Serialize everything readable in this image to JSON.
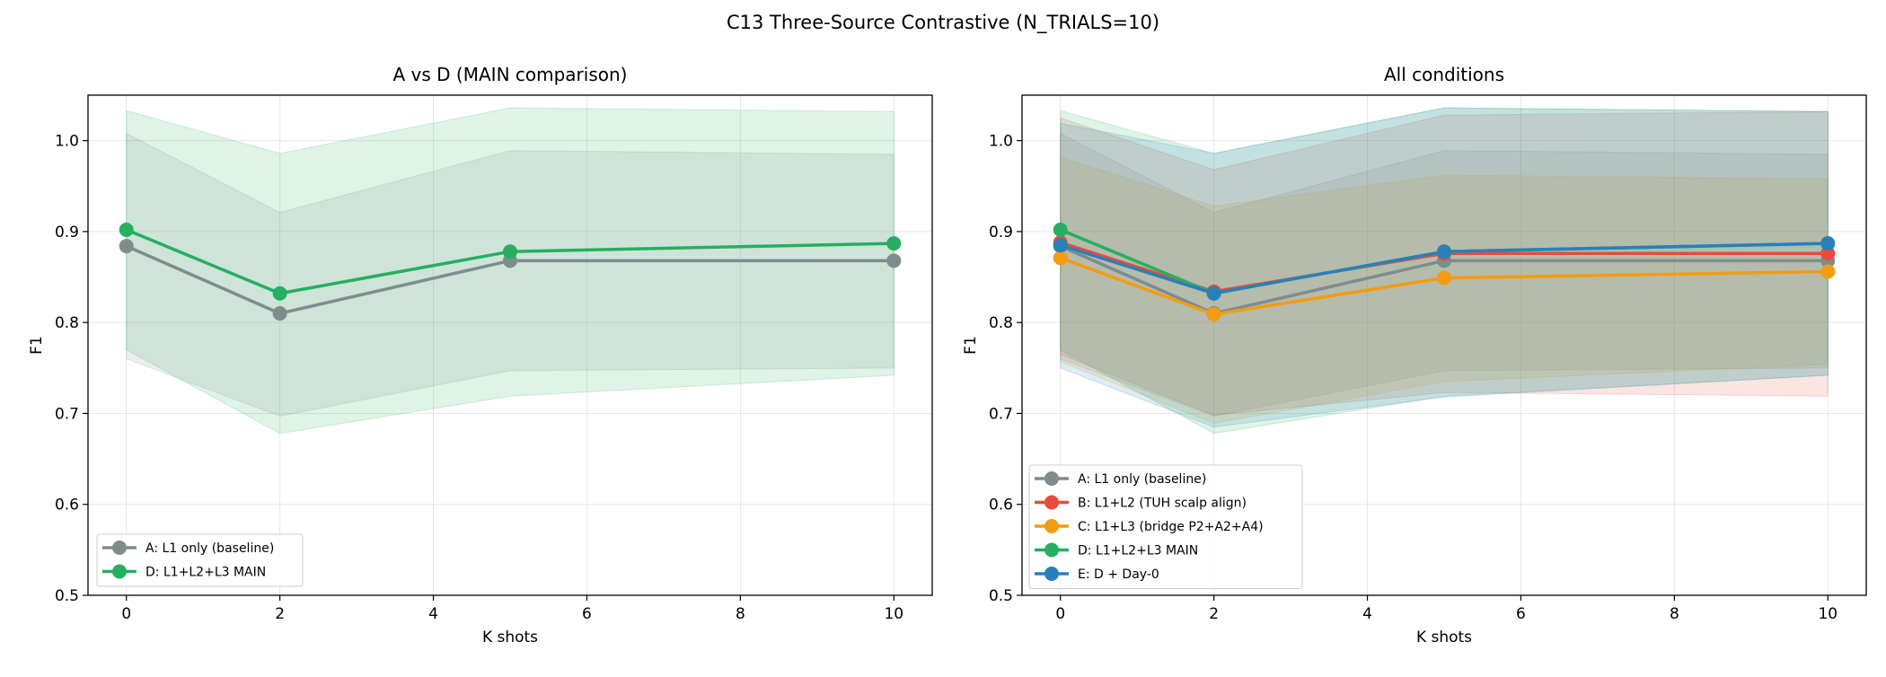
{
  "figure_title": "C13 Three-Source Contrastive (N_TRIALS=10)",
  "chart_data": [
    {
      "type": "line",
      "title": "A vs D (MAIN comparison)",
      "xlabel": "K shots",
      "ylabel": "F1",
      "xlim": [
        -0.5,
        10.5
      ],
      "ylim": [
        0.5,
        1.05
      ],
      "xticks": [
        0,
        2,
        4,
        6,
        8,
        10
      ],
      "yticks": [
        "0.5",
        "0.6",
        "0.7",
        "0.8",
        "0.9",
        "1.0"
      ],
      "grid": true,
      "legend_position": "lower-left",
      "x": [
        0,
        2,
        5,
        10
      ],
      "series": [
        {
          "name": "A: L1 only (baseline)",
          "color": "#7f8c8d",
          "values": [
            0.884,
            0.81,
            0.868,
            0.868
          ],
          "lower": [
            0.76,
            0.697,
            0.747,
            0.75
          ],
          "upper": [
            1.008,
            0.921,
            0.989,
            0.985
          ]
        },
        {
          "name": "D: L1+L2+L3 MAIN",
          "color": "#27ae60",
          "values": [
            0.902,
            0.832,
            0.878,
            0.887
          ],
          "lower": [
            0.77,
            0.678,
            0.719,
            0.742
          ],
          "upper": [
            1.033,
            0.986,
            1.036,
            1.032
          ]
        }
      ]
    },
    {
      "type": "line",
      "title": "All conditions",
      "xlabel": "K shots",
      "ylabel": "F1",
      "xlim": [
        -0.5,
        10.5
      ],
      "ylim": [
        0.5,
        1.05
      ],
      "xticks": [
        0,
        2,
        4,
        6,
        8,
        10
      ],
      "yticks": [
        "0.5",
        "0.6",
        "0.7",
        "0.8",
        "0.9",
        "1.0"
      ],
      "grid": true,
      "legend_position": "lower-left",
      "x": [
        0,
        2,
        5,
        10
      ],
      "series": [
        {
          "name": "A: L1 only (baseline)",
          "color": "#7f8c8d",
          "values": [
            0.884,
            0.81,
            0.868,
            0.868
          ],
          "lower": [
            0.76,
            0.697,
            0.747,
            0.75
          ],
          "upper": [
            1.008,
            0.921,
            0.989,
            0.985
          ]
        },
        {
          "name": "B: L1+L2 (TUH scalp align)",
          "color": "#e74c3c",
          "values": [
            0.888,
            0.834,
            0.876,
            0.876
          ],
          "lower": [
            0.765,
            0.698,
            0.723,
            0.719
          ],
          "upper": [
            1.025,
            0.968,
            1.028,
            1.032
          ]
        },
        {
          "name": "C: L1+L3 (bridge P2+A2+A4)",
          "color": "#f39c12",
          "values": [
            0.871,
            0.809,
            0.849,
            0.856
          ],
          "lower": [
            0.757,
            0.689,
            0.735,
            0.754
          ],
          "upper": [
            0.982,
            0.928,
            0.962,
            0.958
          ]
        },
        {
          "name": "D: L1+L2+L3 MAIN",
          "color": "#27ae60",
          "values": [
            0.902,
            0.832,
            0.878,
            0.887
          ],
          "lower": [
            0.77,
            0.678,
            0.719,
            0.742
          ],
          "upper": [
            1.033,
            0.986,
            1.036,
            1.032
          ]
        },
        {
          "name": "E: D + Day-0",
          "color": "#2980b9",
          "values": [
            0.885,
            0.832,
            0.878,
            0.887
          ],
          "lower": [
            0.75,
            0.685,
            0.718,
            0.742
          ],
          "upper": [
            1.019,
            0.986,
            1.036,
            1.032
          ]
        }
      ]
    }
  ]
}
